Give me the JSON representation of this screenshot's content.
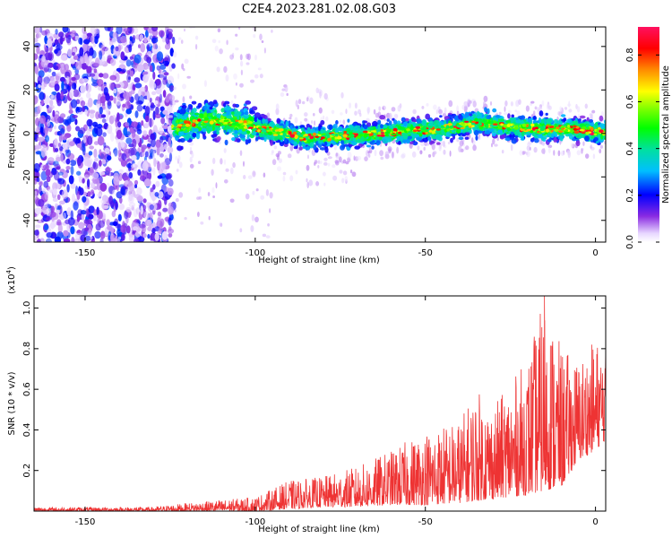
{
  "title": "C2E4.2023.281.02.08.G03",
  "chart_data": [
    {
      "type": "heatmap",
      "xlabel": "Height of straight line (km)",
      "ylabel": "Frequency (Hz)",
      "xlim": [
        -165,
        3
      ],
      "ylim": [
        -50,
        49
      ],
      "xticks": [
        -150,
        -100,
        -50,
        0
      ],
      "yticks": [
        -40,
        -20,
        0,
        20,
        40
      ],
      "colorbar": {
        "label": "Normalized spectral amplitude",
        "range": [
          0,
          0.92
        ],
        "ticks": [
          0.0,
          0.2,
          0.4,
          0.6,
          0.8
        ]
      },
      "ridge_frequency_hz": [
        [
          -123,
          3
        ],
        [
          -115,
          6
        ],
        [
          -105,
          5
        ],
        [
          -95,
          1
        ],
        [
          -85,
          -2
        ],
        [
          -75,
          -1
        ],
        [
          -65,
          0
        ],
        [
          -55,
          1
        ],
        [
          -45,
          2
        ],
        [
          -35,
          5
        ],
        [
          -25,
          3
        ],
        [
          -15,
          2
        ],
        [
          -5,
          2
        ],
        [
          0,
          1
        ],
        [
          3,
          1
        ]
      ],
      "regions": [
        {
          "x": [
            -165,
            -124
          ],
          "description_value": "broadband noise, amplitude ~0.1-0.3"
        },
        {
          "x": [
            -124,
            3
          ],
          "description_value": "narrow band near 0 Hz, amplitude up to ~0.9"
        }
      ]
    },
    {
      "type": "line",
      "xlabel": "Height of straight line (km)",
      "ylabel": "SNR (10 * v/v)",
      "yscale_label": "(x10^4)",
      "xlim": [
        -165,
        3
      ],
      "ylim": [
        0,
        1.06
      ],
      "xticks": [
        -150,
        -100,
        -50,
        0
      ],
      "yticks": [
        0.2,
        0.4,
        0.6,
        0.8,
        1.0
      ],
      "color": "#ee3333",
      "envelope": [
        {
          "x": -165,
          "low": 0.0,
          "high": 0.02
        },
        {
          "x": -130,
          "low": 0.0,
          "high": 0.02
        },
        {
          "x": -120,
          "low": 0.0,
          "high": 0.04
        },
        {
          "x": -100,
          "low": 0.0,
          "high": 0.07
        },
        {
          "x": -90,
          "low": 0.01,
          "high": 0.15
        },
        {
          "x": -80,
          "low": 0.02,
          "high": 0.17
        },
        {
          "x": -70,
          "low": 0.02,
          "high": 0.22
        },
        {
          "x": -60,
          "low": 0.03,
          "high": 0.3
        },
        {
          "x": -50,
          "low": 0.03,
          "high": 0.4
        },
        {
          "x": -40,
          "low": 0.04,
          "high": 0.45
        },
        {
          "x": -35,
          "low": 0.05,
          "high": 0.6
        },
        {
          "x": -30,
          "low": 0.06,
          "high": 0.52
        },
        {
          "x": -20,
          "low": 0.08,
          "high": 0.75
        },
        {
          "x": -15,
          "low": 0.1,
          "high": 1.06
        },
        {
          "x": -10,
          "low": 0.12,
          "high": 0.8
        },
        {
          "x": -5,
          "low": 0.25,
          "high": 0.75
        },
        {
          "x": 0,
          "low": 0.3,
          "high": 0.85
        },
        {
          "x": 3,
          "low": 0.35,
          "high": 0.82
        }
      ]
    }
  ]
}
